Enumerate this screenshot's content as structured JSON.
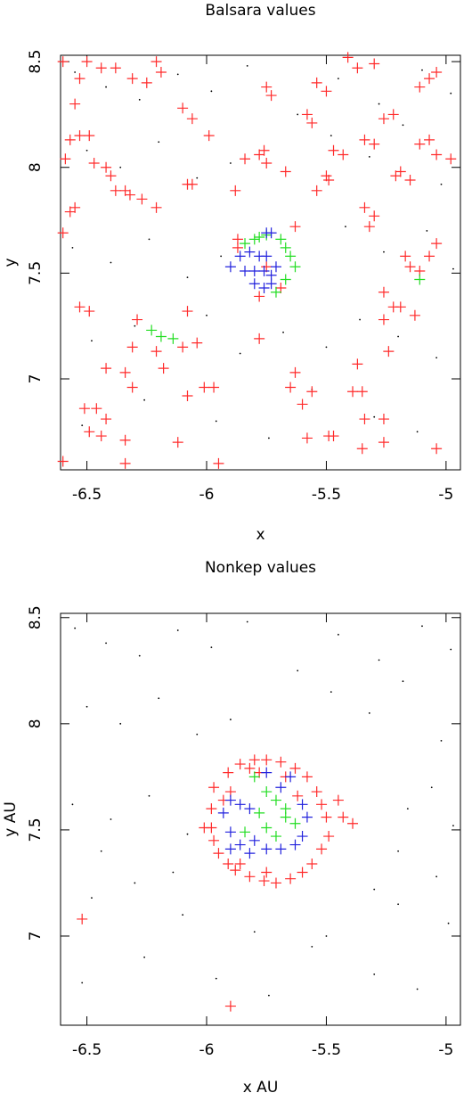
{
  "chart_data": [
    {
      "type": "scatter",
      "title": "Balsara values",
      "xlabel": "x",
      "ylabel": "y",
      "xlim": [
        -6.61,
        -4.94
      ],
      "ylim": [
        6.57,
        8.53
      ],
      "xticks": [
        -6.5,
        -6,
        -5.5,
        -5
      ],
      "yticks": [
        7,
        7.5,
        8,
        8.5
      ],
      "series": [
        {
          "color": "#000000",
          "marker": "dot",
          "x": [
            -6.55,
            -6.42,
            -6.28,
            -6.12,
            -5.98,
            -5.83,
            -5.62,
            -5.45,
            -5.28,
            -5.1,
            -4.98,
            -6.5,
            -6.36,
            -6.2,
            -6.04,
            -5.9,
            -5.48,
            -5.32,
            -5.18,
            -5.02,
            -6.56,
            -6.4,
            -6.24,
            -6.08,
            -5.94,
            -5.8,
            -5.42,
            -5.26,
            -5.08,
            -4.97,
            -6.48,
            -6.3,
            -6.0,
            -5.86,
            -5.68,
            -5.5,
            -5.36,
            -5.2,
            -5.04,
            -6.52,
            -6.26,
            -5.96,
            -5.74,
            -5.56,
            -5.3,
            -5.12
          ],
          "y": [
            8.45,
            8.38,
            8.32,
            8.44,
            8.36,
            8.48,
            8.25,
            8.42,
            8.3,
            8.46,
            8.35,
            8.08,
            8.0,
            8.12,
            7.95,
            8.02,
            8.15,
            8.05,
            8.2,
            7.92,
            7.62,
            7.55,
            7.66,
            7.48,
            7.58,
            7.45,
            7.72,
            7.6,
            7.7,
            7.52,
            7.18,
            7.25,
            7.3,
            7.12,
            7.22,
            7.15,
            7.28,
            7.2,
            7.1,
            6.78,
            6.9,
            6.8,
            6.72,
            6.95,
            6.82,
            6.75
          ]
        },
        {
          "color": "#ff2a2a",
          "marker": "cross",
          "x": [
            -6.6,
            -6.5,
            -6.44,
            -6.38,
            -6.31,
            -6.25,
            -6.19,
            -6.21,
            -6.53,
            -6.55,
            -6.53,
            -6.49,
            -6.57,
            -6.59,
            -6.47,
            -6.42,
            -6.4,
            -6.38,
            -6.34,
            -6.32,
            -6.27,
            -6.21,
            -6.57,
            -6.55,
            -6.6,
            -6.53,
            -6.49,
            -6.29,
            -6.08,
            -6.04,
            -6.1,
            -6.21,
            -6.31,
            -6.42,
            -6.34,
            -6.31,
            -6.18,
            -6.08,
            -6.01,
            -5.97,
            -6.51,
            -6.46,
            -6.42,
            -6.49,
            -6.44,
            -6.34,
            -6.34,
            -6.6,
            -5.95,
            -6.12,
            -6.1,
            -6.06,
            -5.99,
            -6.08,
            -6.06,
            -5.88,
            -5.84,
            -5.78,
            -5.75,
            -5.75,
            -5.73,
            -5.76,
            -5.67,
            -5.54,
            -5.5,
            -5.49,
            -5.54,
            -5.5,
            -5.56,
            -5.58,
            -5.47,
            -5.43,
            -5.41,
            -5.37,
            -5.3,
            -5.26,
            -5.22,
            -5.3,
            -5.34,
            -5.19,
            -5.15,
            -5.21,
            -5.11,
            -5.07,
            -5.04,
            -5.11,
            -5.07,
            -5.04,
            -4.98,
            -5.34,
            -5.32,
            -5.3,
            -5.17,
            -5.15,
            -5.11,
            -5.07,
            -5.04,
            -5.26,
            -5.22,
            -5.19,
            -5.26,
            -5.13,
            -5.24,
            -5.37,
            -5.39,
            -5.35,
            -5.34,
            -5.49,
            -5.56,
            -5.6,
            -5.63,
            -5.65,
            -5.75,
            -5.69,
            -5.63,
            -5.78,
            -5.78,
            -5.58,
            -5.47,
            -5.35,
            -5.26,
            -5.26,
            -5.04,
            -5.87,
            -5.87
          ],
          "y": [
            8.5,
            8.5,
            8.47,
            8.47,
            8.42,
            8.4,
            8.45,
            8.5,
            8.42,
            8.3,
            8.15,
            8.15,
            8.13,
            8.04,
            8.02,
            8.0,
            7.96,
            7.89,
            7.89,
            7.87,
            7.85,
            7.81,
            7.79,
            7.81,
            7.69,
            7.34,
            7.32,
            7.28,
            7.32,
            7.17,
            7.15,
            7.13,
            7.15,
            7.05,
            7.03,
            6.96,
            7.05,
            6.92,
            6.96,
            6.96,
            6.86,
            6.86,
            6.81,
            6.75,
            6.73,
            6.71,
            6.6,
            6.61,
            6.6,
            6.7,
            8.28,
            8.23,
            8.15,
            7.92,
            7.92,
            7.89,
            8.04,
            8.06,
            8.02,
            8.38,
            8.34,
            8.08,
            7.98,
            7.89,
            7.96,
            7.94,
            8.4,
            8.36,
            8.21,
            8.25,
            8.08,
            8.06,
            8.52,
            8.47,
            8.49,
            8.23,
            8.25,
            8.11,
            8.13,
            7.98,
            7.94,
            7.96,
            8.38,
            8.42,
            8.45,
            8.11,
            8.13,
            8.06,
            8.04,
            7.81,
            7.72,
            7.77,
            7.58,
            7.53,
            7.51,
            7.58,
            7.64,
            7.41,
            7.34,
            7.34,
            7.28,
            7.3,
            7.13,
            7.07,
            6.94,
            6.94,
            6.81,
            6.73,
            6.94,
            6.88,
            7.03,
            6.96,
            7.53,
            7.43,
            7.72,
            7.39,
            7.19,
            6.72,
            6.73,
            6.67,
            6.7,
            6.81,
            6.67,
            7.66,
            7.62
          ]
        },
        {
          "color": "#22dd22",
          "marker": "cross",
          "x": [
            -5.84,
            -5.8,
            -5.75,
            -5.69,
            -5.67,
            -5.65,
            -5.63,
            -5.67,
            -5.71,
            -5.78,
            -6.23,
            -6.19,
            -6.14,
            -5.11
          ],
          "y": [
            7.64,
            7.66,
            7.68,
            7.66,
            7.62,
            7.58,
            7.53,
            7.47,
            7.41,
            7.67,
            7.23,
            7.2,
            7.19,
            7.47
          ]
        },
        {
          "color": "#2222dd",
          "marker": "cross",
          "x": [
            -5.86,
            -5.82,
            -5.78,
            -5.75,
            -5.71,
            -5.73,
            -5.76,
            -5.8,
            -5.84,
            -5.8,
            -5.76,
            -5.73,
            -5.9,
            -5.75,
            -5.73
          ],
          "y": [
            7.58,
            7.6,
            7.58,
            7.58,
            7.53,
            7.49,
            7.51,
            7.51,
            7.51,
            7.45,
            7.43,
            7.45,
            7.53,
            7.69,
            7.69
          ]
        }
      ]
    },
    {
      "type": "scatter",
      "title": "Nonkep values",
      "xlabel": "x AU",
      "ylabel": "y AU",
      "xlim": [
        -6.61,
        -4.94
      ],
      "ylim": [
        6.58,
        8.52
      ],
      "xticks": [
        -6.5,
        -6,
        -5.5,
        -5
      ],
      "yticks": [
        7,
        7.5,
        8,
        8.5
      ],
      "series": [
        {
          "color": "#000000",
          "marker": "dot",
          "x": [
            -6.55,
            -6.42,
            -6.28,
            -6.12,
            -5.98,
            -5.83,
            -5.62,
            -5.45,
            -5.28,
            -5.1,
            -4.98,
            -6.5,
            -6.36,
            -6.2,
            -6.04,
            -5.9,
            -5.48,
            -5.32,
            -5.18,
            -5.02,
            -6.56,
            -6.4,
            -6.24,
            -6.08,
            -5.16,
            -5.06,
            -4.97,
            -6.48,
            -6.3,
            -6.14,
            -5.3,
            -5.2,
            -5.04,
            -6.52,
            -6.26,
            -5.96,
            -5.74,
            -5.56,
            -5.3,
            -5.12,
            -6.44,
            -6.1,
            -5.8,
            -5.5,
            -5.2,
            -4.99
          ],
          "y": [
            8.45,
            8.38,
            8.32,
            8.44,
            8.36,
            8.48,
            8.25,
            8.42,
            8.3,
            8.46,
            8.35,
            8.08,
            8.0,
            8.12,
            7.95,
            8.02,
            8.15,
            8.05,
            8.2,
            7.92,
            7.62,
            7.55,
            7.66,
            7.48,
            7.6,
            7.7,
            7.52,
            7.18,
            7.25,
            7.3,
            7.22,
            7.15,
            7.28,
            6.78,
            6.9,
            6.8,
            6.72,
            6.95,
            6.82,
            6.75,
            7.4,
            7.1,
            7.02,
            7.0,
            7.4,
            7.06
          ]
        },
        {
          "color": "#ff2a2a",
          "marker": "cross",
          "x": [
            -5.97,
            -5.91,
            -5.86,
            -5.8,
            -5.75,
            -5.69,
            -5.63,
            -5.58,
            -5.54,
            -5.52,
            -5.5,
            -5.49,
            -5.52,
            -5.56,
            -5.6,
            -5.65,
            -5.71,
            -5.76,
            -5.82,
            -5.88,
            -5.91,
            -5.95,
            -5.97,
            -5.98,
            -5.98,
            -5.93,
            -5.45,
            -5.43,
            -5.39,
            -6.01,
            -5.78,
            -5.67,
            -5.75,
            -5.86,
            -6.52,
            -5.9,
            -5.82,
            -5.62,
            -5.9
          ],
          "y": [
            7.7,
            7.77,
            7.81,
            7.83,
            7.83,
            7.82,
            7.79,
            7.75,
            7.68,
            7.62,
            7.56,
            7.47,
            7.41,
            7.34,
            7.3,
            7.27,
            7.25,
            7.26,
            7.28,
            7.31,
            7.34,
            7.39,
            7.45,
            7.51,
            7.6,
            7.64,
            7.64,
            7.56,
            7.53,
            7.51,
            7.77,
            7.75,
            7.3,
            7.34,
            7.08,
            6.67,
            7.79,
            7.66,
            7.68
          ]
        },
        {
          "color": "#22dd22",
          "marker": "cross",
          "x": [
            -5.8,
            -5.75,
            -5.71,
            -5.67,
            -5.78,
            -5.75,
            -5.71,
            -5.67,
            -5.63,
            -5.84
          ],
          "y": [
            7.75,
            7.68,
            7.64,
            7.6,
            7.58,
            7.51,
            7.47,
            7.56,
            7.53,
            7.49
          ]
        },
        {
          "color": "#2222dd",
          "marker": "cross",
          "x": [
            -5.9,
            -5.86,
            -5.82,
            -5.75,
            -5.69,
            -5.65,
            -5.6,
            -5.58,
            -5.6,
            -5.63,
            -5.69,
            -5.75,
            -5.8,
            -5.86,
            -5.9,
            -5.93,
            -5.82,
            -5.9
          ],
          "y": [
            7.64,
            7.62,
            7.6,
            7.77,
            7.7,
            7.75,
            7.62,
            7.56,
            7.47,
            7.43,
            7.41,
            7.41,
            7.45,
            7.43,
            7.49,
            7.58,
            7.39,
            7.41
          ]
        }
      ]
    }
  ]
}
